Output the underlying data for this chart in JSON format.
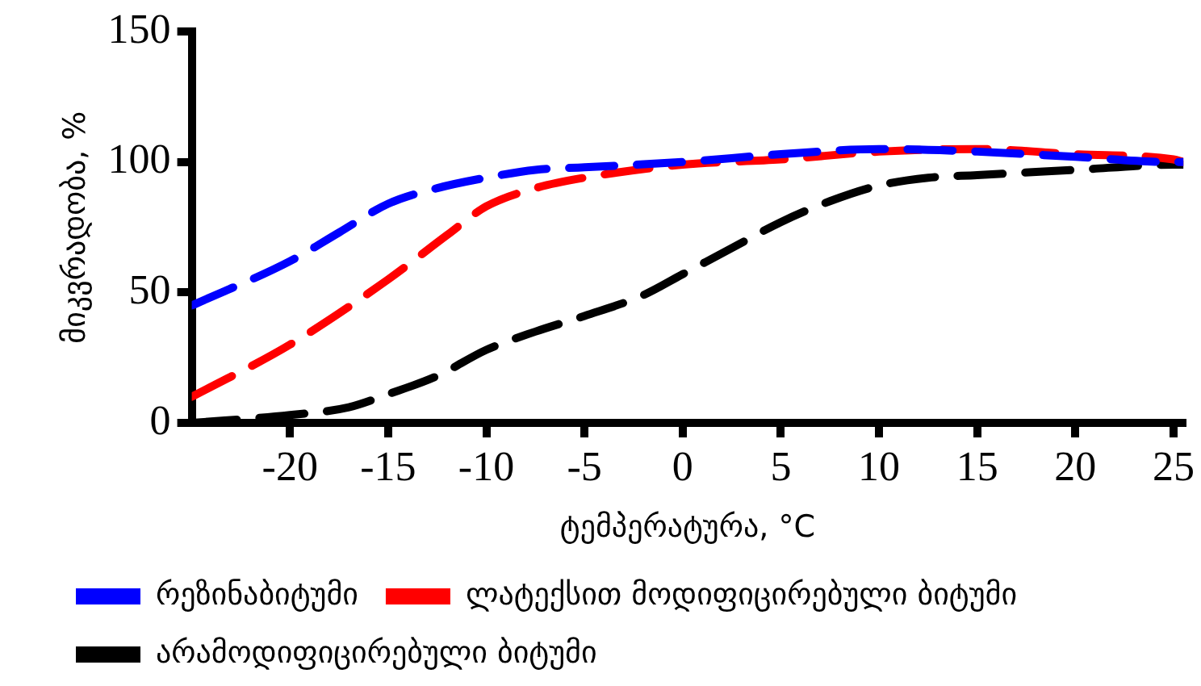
{
  "chart_data": {
    "type": "line",
    "xlabel": "ტემპერატურა, °C",
    "ylabel": "მიკვრადობა, %",
    "xlim": [
      -25,
      25.5
    ],
    "xticks": [
      -20,
      -15,
      -10,
      -5,
      0,
      5,
      10,
      15,
      20,
      25
    ],
    "ylim": [
      0,
      150
    ],
    "yticks": [
      0,
      50,
      100,
      150
    ],
    "grid": false,
    "legend": "bottom",
    "line_style": "dashed",
    "marker": "none",
    "series": [
      {
        "name": "რეზინაბიტუმი",
        "color": "#0000ff",
        "x": [
          -25,
          -20,
          -17.5,
          -15,
          -12.5,
          -10,
          -7.5,
          -5,
          0,
          5,
          10,
          15,
          20,
          25,
          25.5
        ],
        "values": [
          45,
          62,
          73,
          84,
          90,
          94,
          97,
          98,
          100,
          103,
          105,
          104,
          102,
          100,
          100
        ]
      },
      {
        "name": "ლატექსით მოდიფიცირებული ბიტუმი",
        "color": "#ff0000",
        "x": [
          -25,
          -20,
          -15,
          -12,
          -10,
          -7.5,
          -5,
          0,
          5,
          10,
          15,
          20,
          25,
          25.5
        ],
        "values": [
          10,
          30,
          55,
          72,
          83,
          90,
          94,
          99,
          101,
          104,
          105,
          103,
          101,
          100
        ]
      },
      {
        "name": "არამოდიფიცირებული ბიტუმი",
        "color": "#000000",
        "x": [
          -25,
          -20,
          -17,
          -15,
          -12.5,
          -10,
          -7.5,
          -5,
          -2,
          0,
          2.5,
          5,
          7.5,
          10,
          12.5,
          15,
          20,
          25,
          25.5
        ],
        "values": [
          0,
          3,
          6,
          11,
          18,
          28,
          35,
          41,
          49,
          57,
          67,
          77,
          85,
          91,
          94,
          95,
          97,
          99,
          99
        ]
      }
    ]
  }
}
